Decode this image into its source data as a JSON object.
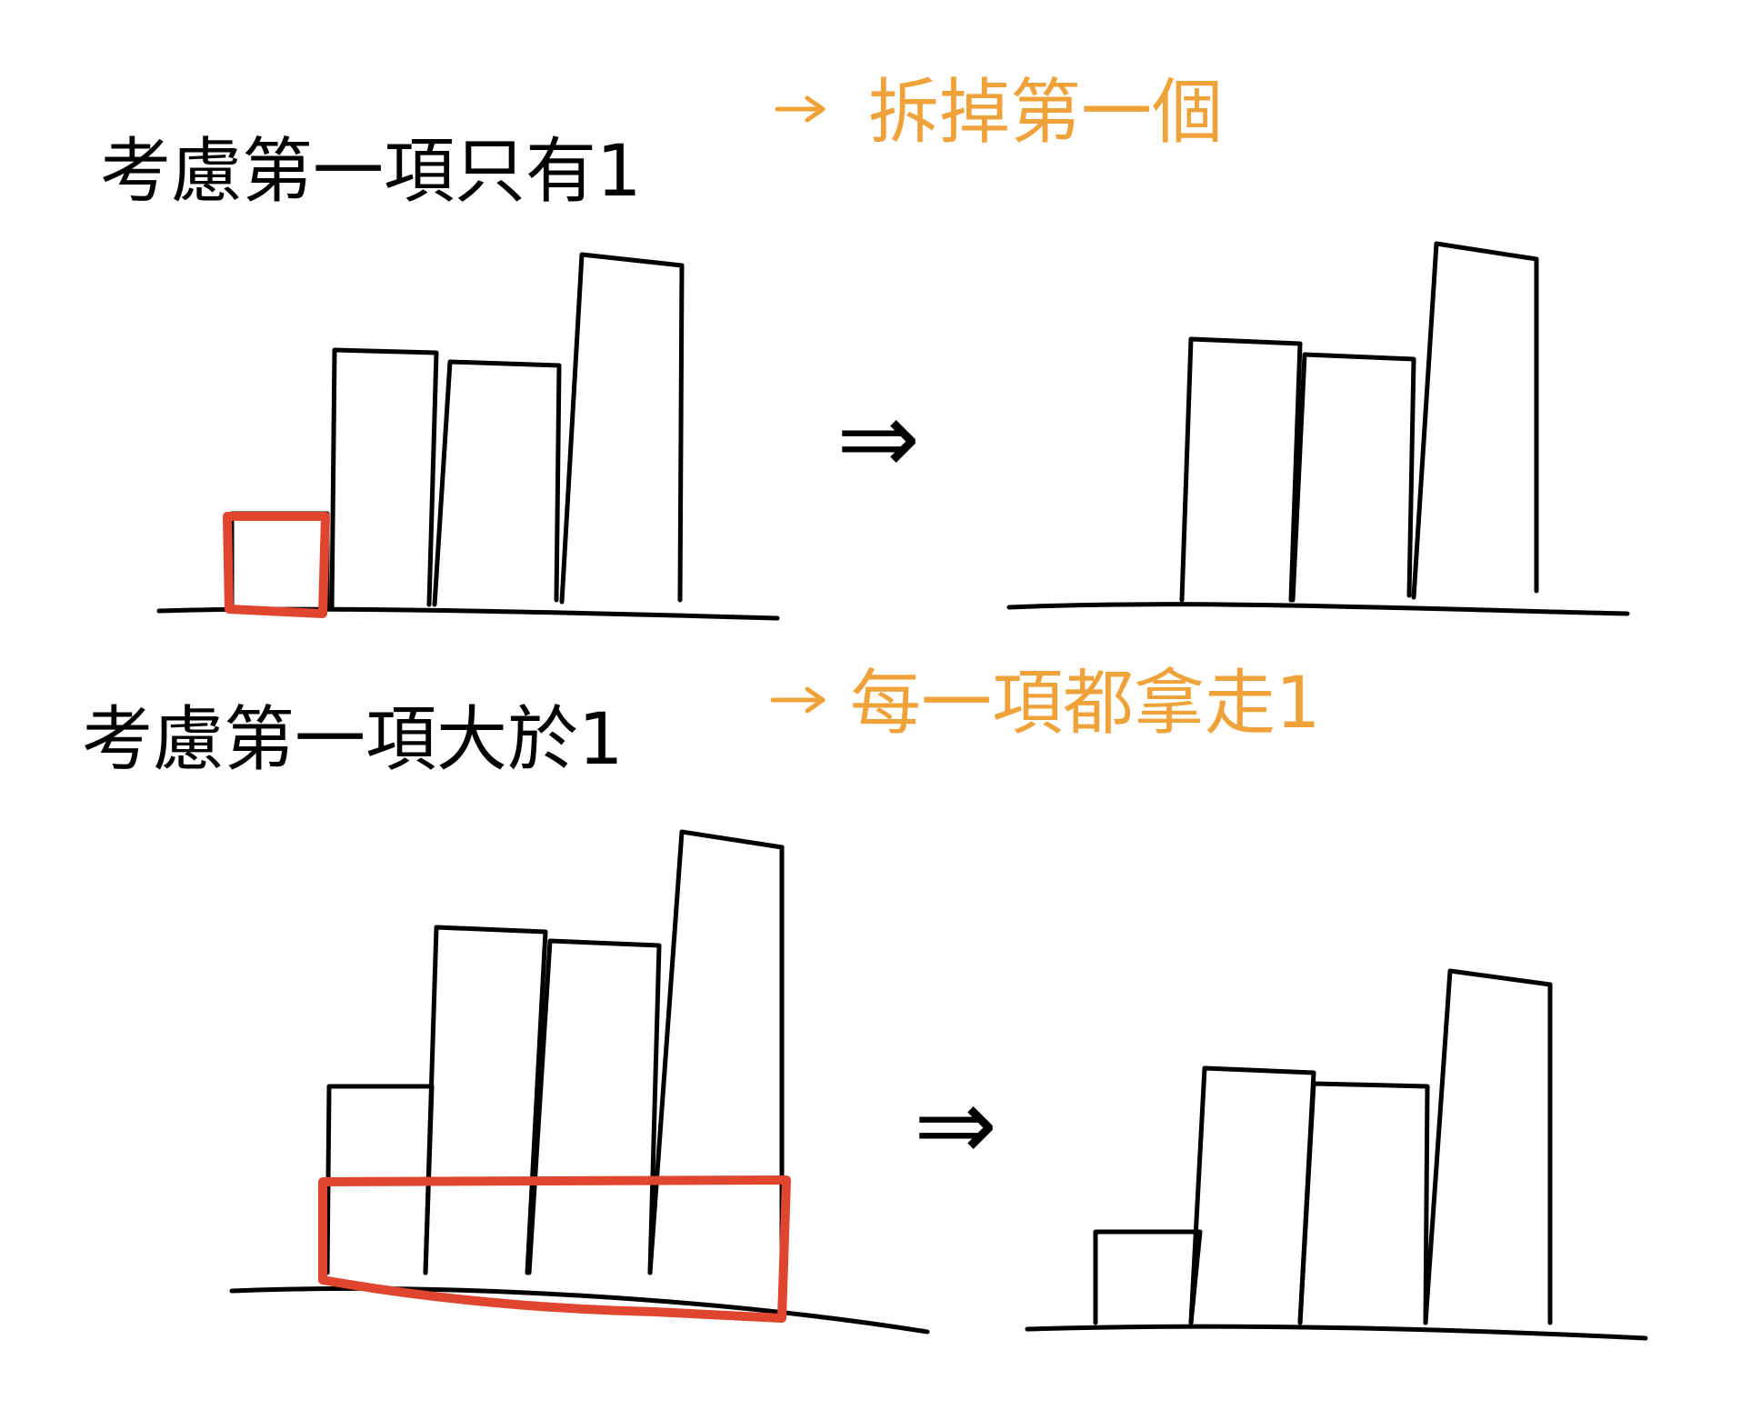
{
  "colors": {
    "ink": "#000000",
    "accent": "#f0a23a",
    "highlight": "#e0452f"
  },
  "section1": {
    "condition": "考慮第一項只有1",
    "action": "拆掉第一個"
  },
  "section2": {
    "condition": "考慮第一項大於1",
    "action": "每一項都拿走1"
  },
  "symbols": {
    "implies": "⇒"
  },
  "chart_data": [
    {
      "type": "bar",
      "title": "",
      "values": [
        1,
        5,
        4.7,
        6.5
      ]
    },
    {
      "type": "bar",
      "title": "",
      "values": [
        5,
        4.7,
        6.5
      ]
    },
    {
      "type": "bar",
      "title": "",
      "values": [
        4,
        7,
        6.8,
        9
      ]
    },
    {
      "type": "bar",
      "title": "",
      "values": [
        2,
        5.5,
        5.3,
        7.5
      ]
    }
  ]
}
